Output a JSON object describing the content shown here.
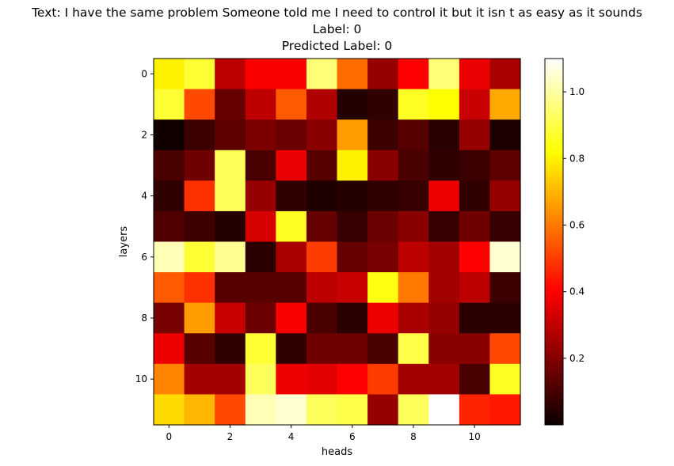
{
  "chart_data": {
    "type": "heatmap",
    "title_lines": [
      "Text: I have the same problem Someone told me I need to control it but it isn t as easy as it sounds",
      "Label: 0",
      "Predicted Label: 0"
    ],
    "xlabel": "heads",
    "ylabel": "layers",
    "x_ticks": [
      "0",
      "2",
      "4",
      "6",
      "8",
      "10"
    ],
    "y_ticks": [
      "0",
      "2",
      "4",
      "6",
      "8",
      "10"
    ],
    "colormap": "hot",
    "colorbar": {
      "range": [
        0.0,
        1.1
      ],
      "ticks": [
        "0.2",
        "0.4",
        "0.6",
        "0.8",
        "1.0"
      ]
    },
    "values": [
      [
        0.8,
        0.88,
        0.28,
        0.38,
        0.38,
        0.95,
        0.58,
        0.22,
        0.4,
        0.95,
        0.35,
        0.25
      ],
      [
        0.88,
        0.52,
        0.14,
        0.28,
        0.55,
        0.26,
        0.04,
        0.06,
        0.86,
        0.82,
        0.3,
        0.68
      ],
      [
        0.01,
        0.08,
        0.13,
        0.18,
        0.15,
        0.2,
        0.66,
        0.08,
        0.12,
        0.05,
        0.22,
        0.03
      ],
      [
        0.1,
        0.16,
        0.92,
        0.1,
        0.35,
        0.12,
        0.8,
        0.2,
        0.1,
        0.06,
        0.08,
        0.13
      ],
      [
        0.06,
        0.48,
        0.92,
        0.22,
        0.06,
        0.03,
        0.04,
        0.06,
        0.07,
        0.36,
        0.06,
        0.22
      ],
      [
        0.11,
        0.08,
        0.04,
        0.32,
        0.86,
        0.14,
        0.07,
        0.15,
        0.2,
        0.07,
        0.16,
        0.07
      ],
      [
        1.02,
        0.88,
        0.98,
        0.05,
        0.25,
        0.5,
        0.14,
        0.17,
        0.28,
        0.24,
        0.4,
        1.05
      ],
      [
        0.55,
        0.48,
        0.12,
        0.12,
        0.12,
        0.28,
        0.3,
        0.84,
        0.6,
        0.24,
        0.28,
        0.08
      ],
      [
        0.17,
        0.66,
        0.3,
        0.15,
        0.38,
        0.1,
        0.05,
        0.36,
        0.25,
        0.22,
        0.05,
        0.05
      ],
      [
        0.36,
        0.12,
        0.06,
        0.88,
        0.06,
        0.16,
        0.16,
        0.1,
        0.9,
        0.2,
        0.2,
        0.52
      ],
      [
        0.62,
        0.24,
        0.24,
        0.92,
        0.36,
        0.34,
        0.4,
        0.5,
        0.24,
        0.24,
        0.1,
        0.86
      ],
      [
        0.76,
        0.7,
        0.52,
        1.02,
        1.05,
        0.92,
        0.9,
        0.22,
        0.92,
        1.1,
        0.46,
        0.44
      ]
    ]
  }
}
